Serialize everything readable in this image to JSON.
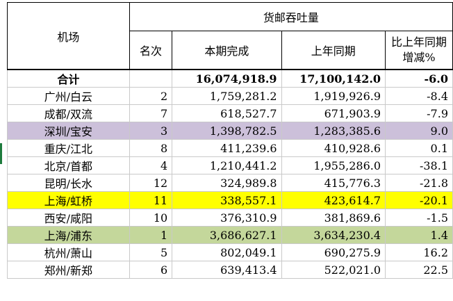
{
  "header": {
    "airport": "机场",
    "group": "货邮吞吐量",
    "rank": "名次",
    "current": "本期完成",
    "last_year": "上年同期",
    "change": "比上年同期增减%"
  },
  "colors": {
    "purple_row": "#ccc0da",
    "yellow_row": "#ffff00",
    "green_row": "#c4d79b"
  },
  "total": {
    "label": "合计",
    "rank": "",
    "current": "16,074,918.9",
    "last_year": "17,100,142.0",
    "change": "-6.0"
  },
  "rows": [
    {
      "airport": "广州/白云",
      "rank": "2",
      "current": "1,759,281.2",
      "last_year": "1,919,926.9",
      "change": "-8.4",
      "highlight": ""
    },
    {
      "airport": "成都/双流",
      "rank": "7",
      "current": "618,527.7",
      "last_year": "671,903.9",
      "change": "-7.9",
      "highlight": ""
    },
    {
      "airport": "深圳/宝安",
      "rank": "3",
      "current": "1,398,782.5",
      "last_year": "1,283,385.6",
      "change": "9.0",
      "highlight": "purple"
    },
    {
      "airport": "重庆/江北",
      "rank": "8",
      "current": "411,239.6",
      "last_year": "410,928.6",
      "change": "0.1",
      "highlight": ""
    },
    {
      "airport": "北京/首都",
      "rank": "4",
      "current": "1,210,441.2",
      "last_year": "1,955,286.0",
      "change": "-38.1",
      "highlight": ""
    },
    {
      "airport": "昆明/长水",
      "rank": "12",
      "current": "324,989.8",
      "last_year": "415,776.3",
      "change": "-21.8",
      "highlight": ""
    },
    {
      "airport": "上海/虹桥",
      "rank": "11",
      "current": "338,557.1",
      "last_year": "423,614.7",
      "change": "-20.1",
      "highlight": "yellow"
    },
    {
      "airport": "西安/咸阳",
      "rank": "10",
      "current": "376,310.9",
      "last_year": "381,869.6",
      "change": "-1.5",
      "highlight": ""
    },
    {
      "airport": "上海/浦东",
      "rank": "1",
      "current": "3,686,627.1",
      "last_year": "3,634,230.4",
      "change": "1.4",
      "highlight": "green"
    },
    {
      "airport": "杭州/萧山",
      "rank": "5",
      "current": "802,049.1",
      "last_year": "690,275.9",
      "change": "16.2",
      "highlight": ""
    },
    {
      "airport": "郑州/新郑",
      "rank": "6",
      "current": "639,413.4",
      "last_year": "522,021.0",
      "change": "22.5",
      "highlight": ""
    }
  ]
}
